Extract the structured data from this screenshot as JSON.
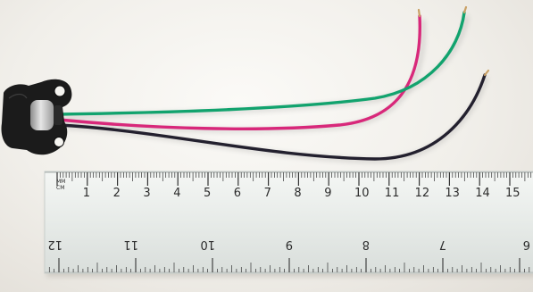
{
  "ruler": {
    "unit_label_top": "MM",
    "unit_label_bottom": "CM",
    "cm_labels": [
      "1",
      "2",
      "3",
      "4",
      "5",
      "6",
      "7",
      "8",
      "9",
      "10",
      "11",
      "12",
      "13",
      "14",
      "15",
      "1"
    ],
    "inch_labels": [
      "12",
      "11",
      "10",
      "9",
      "8",
      "7",
      "6"
    ]
  },
  "object": {
    "wire_colors": {
      "pink": "#d8287a",
      "green": "#12a36e",
      "black": "#23202e"
    },
    "connector_color": "#1b1b1b"
  }
}
